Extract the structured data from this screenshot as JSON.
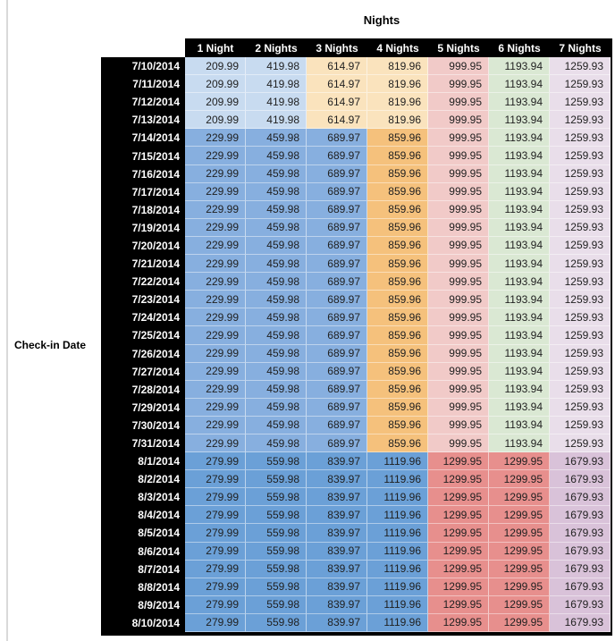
{
  "palette": {
    "header_bg": "#000000",
    "header_text": "#ffffff",
    "cell_text": "#1f1f1f",
    "light_blue": "#C8DBF0",
    "medium_blue": "#87AFDF",
    "dark_blue": "#6BA0D7",
    "light_orange": "#FAE3BD",
    "medium_orange": "#F5C17C",
    "light_red": "#F1CAC8",
    "medium_red": "#E78F8D",
    "light_green": "#DAE8D3",
    "light_purple": "#E9DEEA",
    "medium_purple": "#D9C2D9"
  },
  "row_color_bands": [
    {
      "from_row": 0,
      "to_row": 3,
      "cell_colors": [
        "light_blue",
        "light_blue",
        "light_orange",
        "light_orange",
        "light_red",
        "light_green",
        "light_purple"
      ]
    },
    {
      "from_row": 4,
      "to_row": 21,
      "cell_colors": [
        "medium_blue",
        "medium_blue",
        "medium_blue",
        "medium_orange",
        "light_red",
        "light_green",
        "light_purple"
      ]
    },
    {
      "from_row": 22,
      "to_row": 31,
      "cell_colors": [
        "dark_blue",
        "dark_blue",
        "dark_blue",
        "dark_blue",
        "medium_red",
        "medium_red",
        "medium_purple"
      ]
    }
  ],
  "chart_data": {
    "type": "table",
    "title": "Nights",
    "row_axis_label": "Check-in Date",
    "columns": [
      "1 Night",
      "2 Nights",
      "3 Nights",
      "4 Nights",
      "5 Nights",
      "6 Nights",
      "7 Nights"
    ],
    "rows": [
      {
        "date": "7/10/2014",
        "values": [
          209.99,
          419.98,
          614.97,
          819.96,
          999.95,
          1193.94,
          1259.93
        ]
      },
      {
        "date": "7/11/2014",
        "values": [
          209.99,
          419.98,
          614.97,
          819.96,
          999.95,
          1193.94,
          1259.93
        ]
      },
      {
        "date": "7/12/2014",
        "values": [
          209.99,
          419.98,
          614.97,
          819.96,
          999.95,
          1193.94,
          1259.93
        ]
      },
      {
        "date": "7/13/2014",
        "values": [
          209.99,
          419.98,
          614.97,
          819.96,
          999.95,
          1193.94,
          1259.93
        ]
      },
      {
        "date": "7/14/2014",
        "values": [
          229.99,
          459.98,
          689.97,
          859.96,
          999.95,
          1193.94,
          1259.93
        ]
      },
      {
        "date": "7/15/2014",
        "values": [
          229.99,
          459.98,
          689.97,
          859.96,
          999.95,
          1193.94,
          1259.93
        ]
      },
      {
        "date": "7/16/2014",
        "values": [
          229.99,
          459.98,
          689.97,
          859.96,
          999.95,
          1193.94,
          1259.93
        ]
      },
      {
        "date": "7/17/2014",
        "values": [
          229.99,
          459.98,
          689.97,
          859.96,
          999.95,
          1193.94,
          1259.93
        ]
      },
      {
        "date": "7/18/2014",
        "values": [
          229.99,
          459.98,
          689.97,
          859.96,
          999.95,
          1193.94,
          1259.93
        ]
      },
      {
        "date": "7/19/2014",
        "values": [
          229.99,
          459.98,
          689.97,
          859.96,
          999.95,
          1193.94,
          1259.93
        ]
      },
      {
        "date": "7/20/2014",
        "values": [
          229.99,
          459.98,
          689.97,
          859.96,
          999.95,
          1193.94,
          1259.93
        ]
      },
      {
        "date": "7/21/2014",
        "values": [
          229.99,
          459.98,
          689.97,
          859.96,
          999.95,
          1193.94,
          1259.93
        ]
      },
      {
        "date": "7/22/2014",
        "values": [
          229.99,
          459.98,
          689.97,
          859.96,
          999.95,
          1193.94,
          1259.93
        ]
      },
      {
        "date": "7/23/2014",
        "values": [
          229.99,
          459.98,
          689.97,
          859.96,
          999.95,
          1193.94,
          1259.93
        ]
      },
      {
        "date": "7/24/2014",
        "values": [
          229.99,
          459.98,
          689.97,
          859.96,
          999.95,
          1193.94,
          1259.93
        ]
      },
      {
        "date": "7/25/2014",
        "values": [
          229.99,
          459.98,
          689.97,
          859.96,
          999.95,
          1193.94,
          1259.93
        ]
      },
      {
        "date": "7/26/2014",
        "values": [
          229.99,
          459.98,
          689.97,
          859.96,
          999.95,
          1193.94,
          1259.93
        ]
      },
      {
        "date": "7/27/2014",
        "values": [
          229.99,
          459.98,
          689.97,
          859.96,
          999.95,
          1193.94,
          1259.93
        ]
      },
      {
        "date": "7/28/2014",
        "values": [
          229.99,
          459.98,
          689.97,
          859.96,
          999.95,
          1193.94,
          1259.93
        ]
      },
      {
        "date": "7/29/2014",
        "values": [
          229.99,
          459.98,
          689.97,
          859.96,
          999.95,
          1193.94,
          1259.93
        ]
      },
      {
        "date": "7/30/2014",
        "values": [
          229.99,
          459.98,
          689.97,
          859.96,
          999.95,
          1193.94,
          1259.93
        ]
      },
      {
        "date": "7/31/2014",
        "values": [
          229.99,
          459.98,
          689.97,
          859.96,
          999.95,
          1193.94,
          1259.93
        ]
      },
      {
        "date": "8/1/2014",
        "values": [
          279.99,
          559.98,
          839.97,
          1119.96,
          1299.95,
          1299.95,
          1679.93
        ]
      },
      {
        "date": "8/2/2014",
        "values": [
          279.99,
          559.98,
          839.97,
          1119.96,
          1299.95,
          1299.95,
          1679.93
        ]
      },
      {
        "date": "8/3/2014",
        "values": [
          279.99,
          559.98,
          839.97,
          1119.96,
          1299.95,
          1299.95,
          1679.93
        ]
      },
      {
        "date": "8/4/2014",
        "values": [
          279.99,
          559.98,
          839.97,
          1119.96,
          1299.95,
          1299.95,
          1679.93
        ]
      },
      {
        "date": "8/5/2014",
        "values": [
          279.99,
          559.98,
          839.97,
          1119.96,
          1299.95,
          1299.95,
          1679.93
        ]
      },
      {
        "date": "8/6/2014",
        "values": [
          279.99,
          559.98,
          839.97,
          1119.96,
          1299.95,
          1299.95,
          1679.93
        ]
      },
      {
        "date": "8/7/2014",
        "values": [
          279.99,
          559.98,
          839.97,
          1119.96,
          1299.95,
          1299.95,
          1679.93
        ]
      },
      {
        "date": "8/8/2014",
        "values": [
          279.99,
          559.98,
          839.97,
          1119.96,
          1299.95,
          1299.95,
          1679.93
        ]
      },
      {
        "date": "8/9/2014",
        "values": [
          279.99,
          559.98,
          839.97,
          1119.96,
          1299.95,
          1299.95,
          1679.93
        ]
      },
      {
        "date": "8/10/2014",
        "values": [
          279.99,
          559.98,
          839.97,
          1119.96,
          1299.95,
          1299.95,
          1679.93
        ]
      }
    ]
  }
}
